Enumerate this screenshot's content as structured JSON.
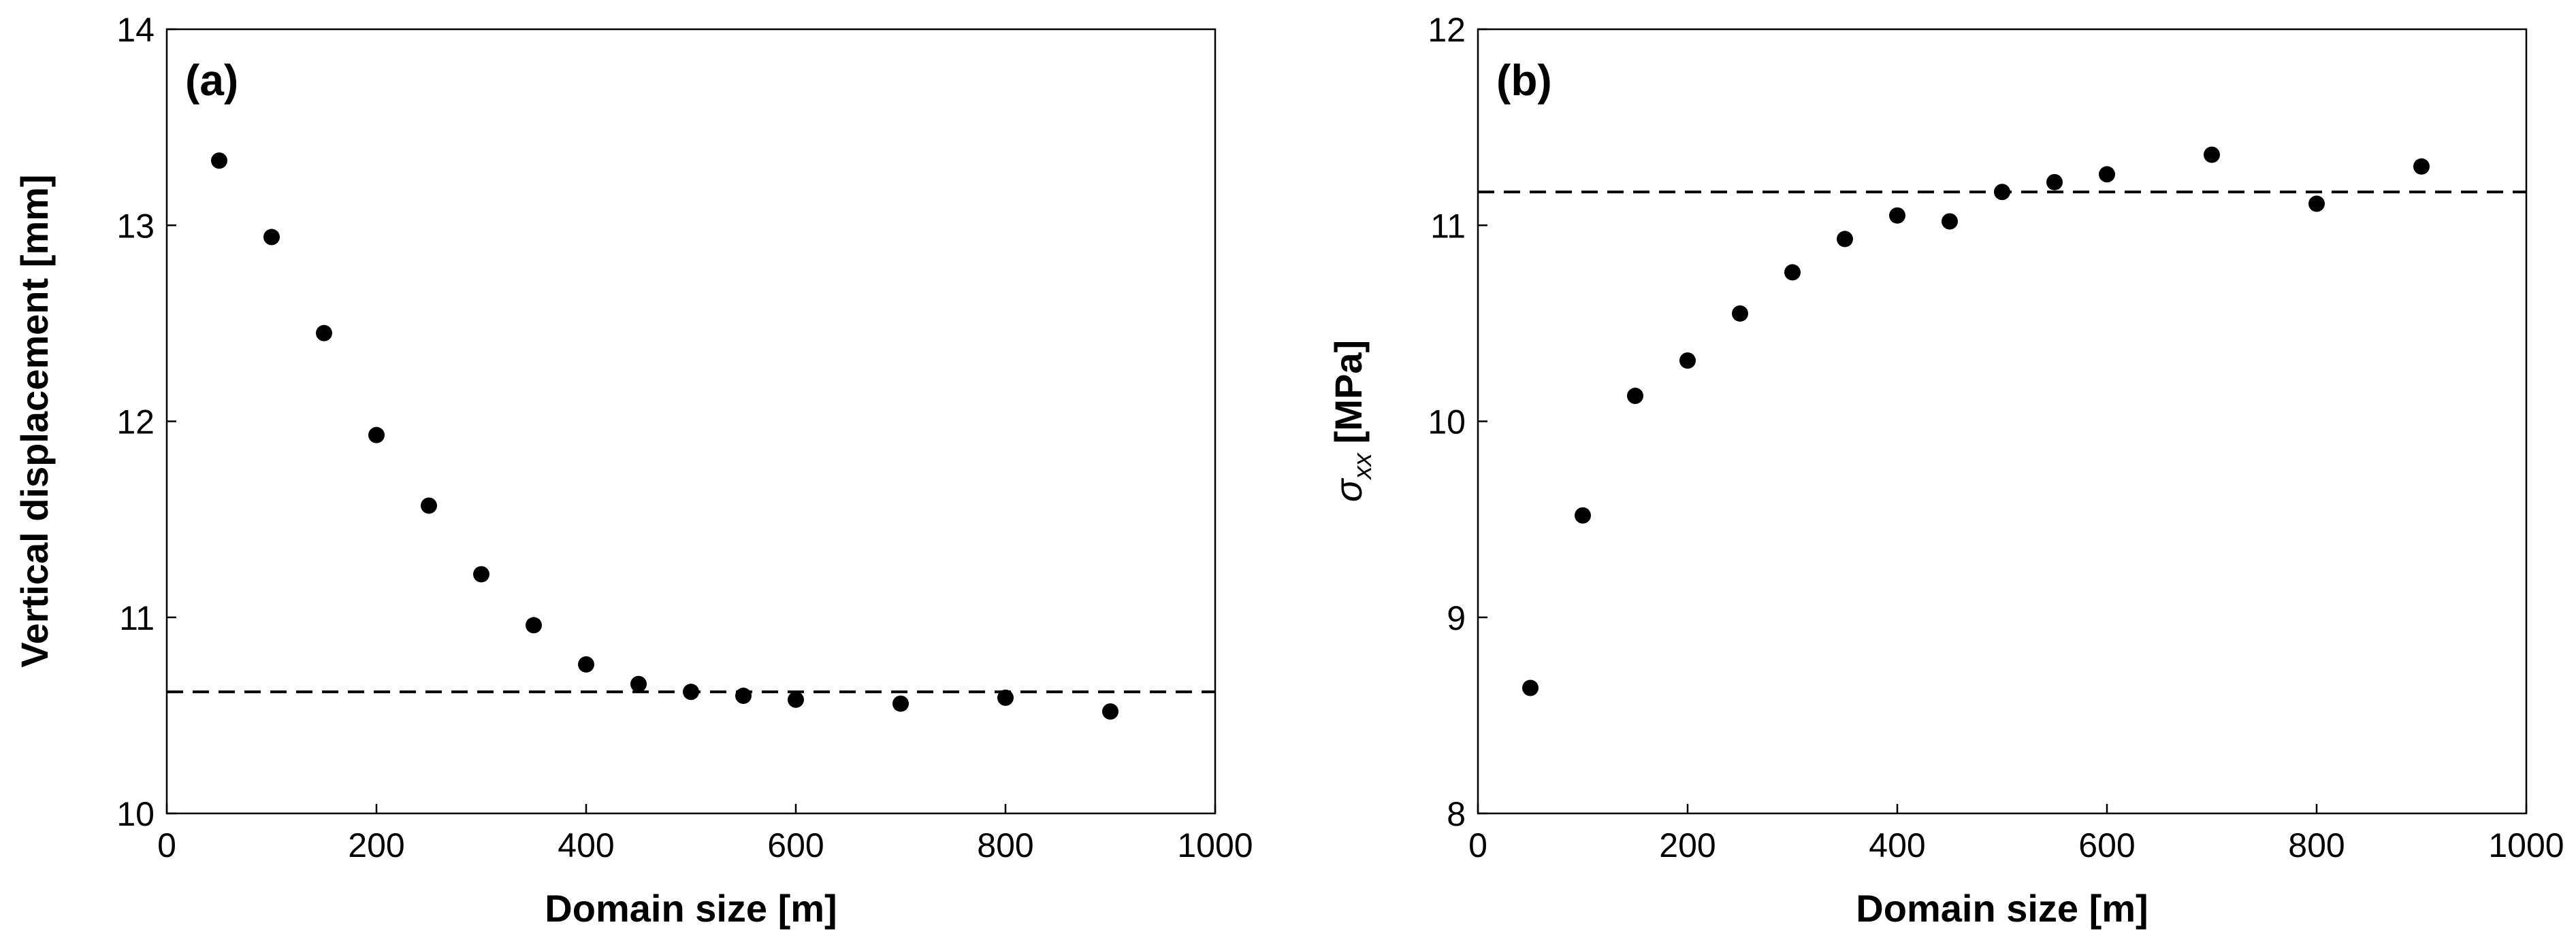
{
  "chart_data": [
    {
      "type": "scatter",
      "panel_label": "(a)",
      "xlabel": "Domain size [m]",
      "ylabel": "Vertical displacement [mm]",
      "xlim": [
        0,
        1000
      ],
      "ylim": [
        10,
        14
      ],
      "xticks": [
        "0",
        "200",
        "400",
        "600",
        "800",
        "1000"
      ],
      "yticks": [
        "10",
        "11",
        "12",
        "13",
        "14"
      ],
      "grid": false,
      "reference_line": 10.62,
      "series": [
        {
          "x": [
            50,
            100,
            150,
            200,
            250,
            300,
            350,
            400,
            450,
            500,
            550,
            600,
            700,
            800,
            900
          ],
          "values": [
            13.33,
            12.94,
            12.45,
            11.93,
            11.57,
            11.22,
            10.96,
            10.76,
            10.66,
            10.62,
            10.6,
            10.58,
            10.56,
            10.59,
            10.52
          ]
        }
      ]
    },
    {
      "type": "scatter",
      "panel_label": "(b)",
      "xlabel": "Domain size [m]",
      "ylabel_main": "σ",
      "ylabel_subscript": "xx",
      "ylabel_unit": "[MPa]",
      "xlim": [
        0,
        1000
      ],
      "ylim": [
        8,
        12
      ],
      "xticks": [
        "0",
        "200",
        "400",
        "600",
        "800",
        "1000"
      ],
      "yticks": [
        "8",
        "9",
        "10",
        "11",
        "12"
      ],
      "grid": false,
      "reference_line": 11.17,
      "series": [
        {
          "x": [
            50,
            100,
            150,
            200,
            250,
            300,
            350,
            400,
            450,
            500,
            550,
            600,
            700,
            800,
            900
          ],
          "values": [
            8.64,
            9.52,
            10.13,
            10.31,
            10.55,
            10.76,
            10.93,
            11.05,
            11.02,
            11.17,
            11.22,
            11.26,
            11.36,
            11.11,
            11.3
          ]
        }
      ]
    }
  ]
}
